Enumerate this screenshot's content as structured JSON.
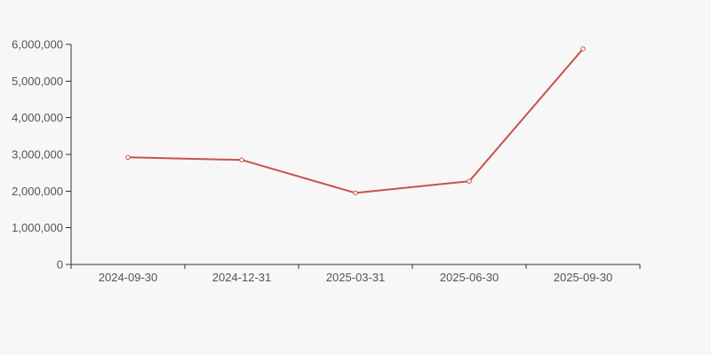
{
  "chart_data": {
    "type": "line",
    "title": "",
    "xlabel": "",
    "ylabel": "",
    "categories": [
      "2024-09-30",
      "2024-12-31",
      "2025-03-31",
      "2025-06-30",
      "2025-09-30"
    ],
    "series": [
      {
        "name": "series-1",
        "values": [
          2920000,
          2850000,
          1950000,
          2270000,
          5880000
        ],
        "color": "#c8514f",
        "marker": "hollow-circle"
      }
    ],
    "ylim": [
      0,
      6000000
    ],
    "y_ticks": [
      0,
      1000000,
      2000000,
      3000000,
      4000000,
      5000000,
      6000000
    ],
    "y_tick_labels": [
      "0",
      "1,000,000",
      "2,000,000",
      "3,000,000",
      "4,000,000",
      "5,000,000",
      "6,000,000"
    ],
    "grid": false,
    "legend_position": "none"
  },
  "colors": {
    "background": "#f7f7f7",
    "axis": "#333333",
    "tick_label": "#555555",
    "series": "#c8514f",
    "marker_fill": "#ffffff"
  }
}
